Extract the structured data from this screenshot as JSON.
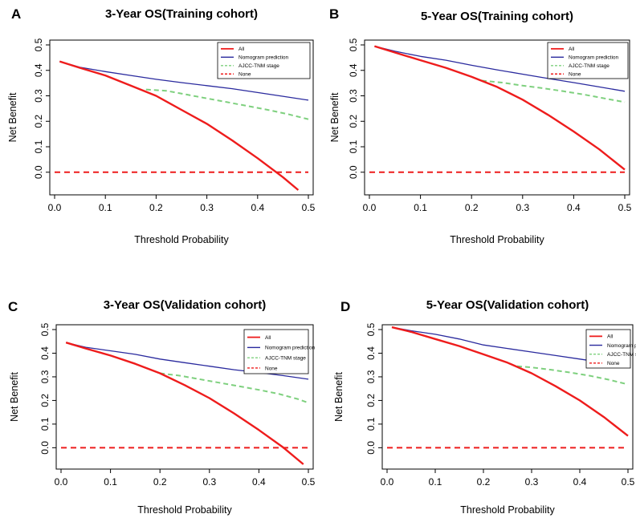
{
  "chart_data": [
    {
      "panel": "A",
      "type": "line",
      "title": "3-Year OS(Training cohort)",
      "xlabel": "Threshold Probability",
      "ylabel": "Net Benefit",
      "xlim": [
        0,
        0.5
      ],
      "ylim": [
        -0.07,
        0.5
      ],
      "xticks": [
        "0.0",
        "0.1",
        "0.2",
        "0.3",
        "0.4",
        "0.5"
      ],
      "yticks": [
        "0.0",
        "0.1",
        "0.2",
        "0.3",
        "0.4",
        "0.5"
      ],
      "legend": {
        "position": "top-right",
        "entries": [
          "All",
          "Nomogram prediction",
          "AJCC-TNM stage",
          "None"
        ]
      },
      "series": [
        {
          "name": "All",
          "color": "#ee1c1c",
          "style": "solid",
          "x": [
            0.01,
            0.05,
            0.1,
            0.15,
            0.2,
            0.25,
            0.3,
            0.35,
            0.4,
            0.45,
            0.48
          ],
          "y": [
            0.435,
            0.41,
            0.38,
            0.34,
            0.3,
            0.245,
            0.19,
            0.125,
            0.055,
            -0.02,
            -0.07
          ]
        },
        {
          "name": "Nomogram prediction",
          "color": "#2a2a9e",
          "style": "solid",
          "x": [
            0.01,
            0.05,
            0.1,
            0.15,
            0.2,
            0.25,
            0.3,
            0.35,
            0.4,
            0.45,
            0.5
          ],
          "y": [
            0.435,
            0.412,
            0.395,
            0.38,
            0.365,
            0.352,
            0.34,
            0.328,
            0.313,
            0.298,
            0.283
          ]
        },
        {
          "name": "AJCC-TNM stage",
          "color": "#7ed07e",
          "style": "dashed",
          "x": [
            0.18,
            0.22,
            0.26,
            0.3,
            0.34,
            0.38,
            0.42,
            0.46,
            0.5
          ],
          "y": [
            0.325,
            0.32,
            0.305,
            0.29,
            0.275,
            0.26,
            0.245,
            0.228,
            0.208
          ]
        },
        {
          "name": "None",
          "color": "#ee1c1c",
          "style": "dashed",
          "x": [
            0.0,
            0.5
          ],
          "y": [
            0.0,
            0.0
          ]
        }
      ]
    },
    {
      "panel": "B",
      "type": "line",
      "title": "5-Year OS(Training cohort)",
      "xlabel": "Threshold Probability",
      "ylabel": "Net Benefit",
      "xlim": [
        0,
        0.5
      ],
      "ylim": [
        -0.07,
        0.5
      ],
      "xticks": [
        "0.0",
        "0.1",
        "0.2",
        "0.3",
        "0.4",
        "0.5"
      ],
      "yticks": [
        "0.0",
        "0.1",
        "0.2",
        "0.3",
        "0.4",
        "0.5"
      ],
      "legend": {
        "position": "top-right",
        "entries": [
          "All",
          "Nomogram prediction",
          "AJCC-TNM stage",
          "None"
        ]
      },
      "series": [
        {
          "name": "All",
          "color": "#ee1c1c",
          "style": "solid",
          "x": [
            0.01,
            0.05,
            0.1,
            0.15,
            0.2,
            0.25,
            0.3,
            0.35,
            0.4,
            0.45,
            0.5
          ],
          "y": [
            0.495,
            0.47,
            0.44,
            0.41,
            0.375,
            0.335,
            0.285,
            0.225,
            0.16,
            0.09,
            0.01
          ]
        },
        {
          "name": "Nomogram prediction",
          "color": "#2a2a9e",
          "style": "solid",
          "x": [
            0.01,
            0.05,
            0.1,
            0.15,
            0.2,
            0.25,
            0.3,
            0.35,
            0.4,
            0.45,
            0.5
          ],
          "y": [
            0.495,
            0.475,
            0.455,
            0.44,
            0.42,
            0.402,
            0.385,
            0.368,
            0.352,
            0.335,
            0.318
          ]
        },
        {
          "name": "AJCC-TNM stage",
          "color": "#7ed07e",
          "style": "dashed",
          "x": [
            0.22,
            0.26,
            0.3,
            0.34,
            0.38,
            0.42,
            0.46,
            0.5
          ],
          "y": [
            0.36,
            0.352,
            0.34,
            0.33,
            0.318,
            0.305,
            0.29,
            0.275
          ]
        },
        {
          "name": "None",
          "color": "#ee1c1c",
          "style": "dashed",
          "x": [
            0.0,
            0.5
          ],
          "y": [
            0.0,
            0.0
          ]
        }
      ]
    },
    {
      "panel": "C",
      "type": "line",
      "title": "3-Year OS(Validation cohort)",
      "xlabel": "Threshold Probability",
      "ylabel": "Net Benefit",
      "xlim": [
        0,
        0.5
      ],
      "ylim": [
        -0.07,
        0.5
      ],
      "xticks": [
        "0.0",
        "0.1",
        "0.2",
        "0.3",
        "0.4",
        "0.5"
      ],
      "yticks": [
        "0.0",
        "0.1",
        "0.2",
        "0.3",
        "0.4",
        "0.5"
      ],
      "legend": {
        "position": "top-right",
        "entries": [
          "All",
          "Nomogram prediction",
          "AJCC-TNM stage",
          "None"
        ]
      },
      "series": [
        {
          "name": "All",
          "color": "#ee1c1c",
          "style": "solid",
          "x": [
            0.01,
            0.05,
            0.1,
            0.15,
            0.2,
            0.25,
            0.3,
            0.35,
            0.4,
            0.45,
            0.49
          ],
          "y": [
            0.445,
            0.42,
            0.39,
            0.355,
            0.315,
            0.265,
            0.21,
            0.145,
            0.075,
            0.0,
            -0.07
          ]
        },
        {
          "name": "Nomogram prediction",
          "color": "#2a2a9e",
          "style": "solid",
          "x": [
            0.01,
            0.05,
            0.1,
            0.15,
            0.2,
            0.25,
            0.3,
            0.35,
            0.4,
            0.45,
            0.5
          ],
          "y": [
            0.445,
            0.425,
            0.41,
            0.395,
            0.375,
            0.36,
            0.345,
            0.33,
            0.318,
            0.305,
            0.29
          ]
        },
        {
          "name": "AJCC-TNM stage",
          "color": "#7ed07e",
          "style": "dashed",
          "x": [
            0.2,
            0.24,
            0.28,
            0.32,
            0.36,
            0.4,
            0.44,
            0.48,
            0.5
          ],
          "y": [
            0.315,
            0.305,
            0.29,
            0.275,
            0.26,
            0.245,
            0.228,
            0.205,
            0.19
          ]
        },
        {
          "name": "None",
          "color": "#ee1c1c",
          "style": "dashed",
          "x": [
            0.0,
            0.5
          ],
          "y": [
            0.0,
            0.0
          ]
        }
      ]
    },
    {
      "panel": "D",
      "type": "line",
      "title": "5-Year OS(Validation cohort)",
      "xlabel": "Threshold Probability",
      "ylabel": "Net Benefit",
      "xlim": [
        0,
        0.5
      ],
      "ylim": [
        -0.07,
        0.5
      ],
      "xticks": [
        "0.0",
        "0.1",
        "0.2",
        "0.3",
        "0.4",
        "0.5"
      ],
      "yticks": [
        "0.0",
        "0.1",
        "0.2",
        "0.3",
        "0.4",
        "0.5"
      ],
      "legend": {
        "position": "top-right",
        "entries": [
          "All",
          "Nomogram prediction",
          "AJCC-TNM stage",
          "None"
        ]
      },
      "series": [
        {
          "name": "All",
          "color": "#ee1c1c",
          "style": "solid",
          "x": [
            0.01,
            0.05,
            0.1,
            0.15,
            0.2,
            0.25,
            0.3,
            0.35,
            0.4,
            0.45,
            0.5
          ],
          "y": [
            0.51,
            0.49,
            0.46,
            0.43,
            0.395,
            0.36,
            0.315,
            0.26,
            0.2,
            0.13,
            0.05
          ]
        },
        {
          "name": "Nomogram prediction",
          "color": "#2a2a9e",
          "style": "solid",
          "x": [
            0.01,
            0.05,
            0.1,
            0.15,
            0.2,
            0.25,
            0.3,
            0.35,
            0.4,
            0.45,
            0.5
          ],
          "y": [
            0.51,
            0.495,
            0.48,
            0.46,
            0.435,
            0.42,
            0.405,
            0.39,
            0.375,
            0.36,
            0.345
          ]
        },
        {
          "name": "AJCC-TNM stage",
          "color": "#7ed07e",
          "style": "dashed",
          "x": [
            0.27,
            0.3,
            0.34,
            0.38,
            0.42,
            0.46,
            0.5
          ],
          "y": [
            0.345,
            0.34,
            0.33,
            0.318,
            0.305,
            0.288,
            0.268
          ]
        },
        {
          "name": "None",
          "color": "#ee1c1c",
          "style": "dashed",
          "x": [
            0.0,
            0.5
          ],
          "y": [
            0.0,
            0.0
          ]
        }
      ]
    }
  ]
}
